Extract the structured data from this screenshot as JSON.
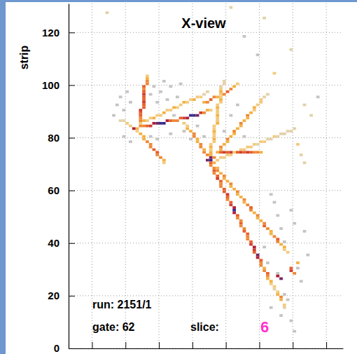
{
  "chart_data": {
    "type": "heatmap",
    "title": "X-view",
    "ylabel": "strip",
    "xlim": [
      0,
      82
    ],
    "xticks": [
      7,
      17,
      27,
      37,
      47,
      57,
      67,
      77
    ],
    "ylim": [
      0,
      131
    ],
    "yticks": [
      0,
      20,
      40,
      60,
      80,
      100,
      120
    ],
    "zlim": [
      0,
      10
    ],
    "grid": true,
    "tick_labels": "y",
    "annotations": [
      {
        "text": "run: 2151/1"
      },
      {
        "text": "gate: 62"
      },
      {
        "text": "slice:"
      },
      {
        "text": "6",
        "color": "#ff33cc"
      }
    ],
    "cells": [
      [
        14,
        92,
        1
      ],
      [
        15,
        95,
        1
      ],
      [
        16,
        90,
        1
      ],
      [
        17,
        97,
        1
      ],
      [
        18,
        93,
        1
      ],
      [
        24,
        96,
        1
      ],
      [
        25,
        99,
        1
      ],
      [
        26,
        93,
        1
      ],
      [
        27,
        97,
        1
      ],
      [
        28,
        101,
        1
      ],
      [
        29,
        94,
        1
      ],
      [
        30,
        99,
        1
      ],
      [
        31,
        88,
        1
      ],
      [
        32,
        95,
        1
      ],
      [
        33,
        100,
        1
      ],
      [
        16,
        80,
        1
      ],
      [
        18,
        78,
        1
      ],
      [
        24,
        80,
        1
      ],
      [
        26,
        79,
        1
      ],
      [
        30,
        81,
        1
      ],
      [
        13,
        88,
        1
      ],
      [
        34,
        82,
        1
      ],
      [
        36,
        79,
        1
      ],
      [
        38,
        84,
        1
      ],
      [
        40,
        80,
        1
      ],
      [
        44,
        86,
        1
      ],
      [
        46,
        82,
        1
      ],
      [
        48,
        88,
        1
      ],
      [
        50,
        92,
        1
      ],
      [
        52,
        80,
        1
      ],
      [
        60,
        58,
        1
      ],
      [
        61,
        55,
        1
      ],
      [
        62,
        50,
        1
      ],
      [
        63,
        45,
        1
      ],
      [
        64,
        40,
        1
      ],
      [
        66,
        52,
        1
      ],
      [
        67,
        47,
        1
      ],
      [
        68,
        30,
        1
      ],
      [
        69,
        25,
        1
      ],
      [
        65,
        18,
        1
      ],
      [
        66,
        10,
        1
      ],
      [
        67,
        6,
        1
      ],
      [
        63,
        12,
        1
      ],
      [
        70,
        44,
        1
      ],
      [
        71,
        35,
        1
      ],
      [
        58,
        38,
        1
      ],
      [
        59,
        32,
        1
      ],
      [
        62,
        28,
        1
      ],
      [
        64,
        20,
        1
      ],
      [
        60,
        15,
        1
      ],
      [
        11,
        127,
        2
      ],
      [
        48,
        129,
        2
      ],
      [
        58,
        125,
        2
      ],
      [
        61,
        104,
        3
      ],
      [
        66,
        113,
        2
      ],
      [
        56,
        111,
        1
      ],
      [
        52,
        118,
        1
      ],
      [
        70,
        92,
        2
      ],
      [
        72,
        88,
        2
      ],
      [
        74,
        95,
        1
      ],
      [
        20,
        83,
        4
      ],
      [
        21,
        84,
        5
      ],
      [
        22,
        84,
        5
      ],
      [
        23,
        84,
        6
      ],
      [
        24,
        84,
        7
      ],
      [
        25,
        85,
        8
      ],
      [
        26,
        85,
        9
      ],
      [
        27,
        85,
        10
      ],
      [
        28,
        85,
        10
      ],
      [
        29,
        86,
        8
      ],
      [
        30,
        86,
        6
      ],
      [
        31,
        86,
        5
      ],
      [
        32,
        86,
        5
      ],
      [
        33,
        87,
        6
      ],
      [
        34,
        87,
        7
      ],
      [
        35,
        87,
        8
      ],
      [
        36,
        88,
        10
      ],
      [
        37,
        88,
        10
      ],
      [
        38,
        88,
        9
      ],
      [
        39,
        89,
        7
      ],
      [
        40,
        89,
        5
      ],
      [
        41,
        90,
        4
      ],
      [
        42,
        90,
        3
      ],
      [
        21,
        85,
        3
      ],
      [
        22,
        86,
        4
      ],
      [
        23,
        86,
        3
      ],
      [
        24,
        87,
        3
      ],
      [
        25,
        87,
        4
      ],
      [
        26,
        88,
        3
      ],
      [
        27,
        88,
        3
      ],
      [
        28,
        89,
        4
      ],
      [
        29,
        90,
        3
      ],
      [
        30,
        90,
        3
      ],
      [
        31,
        91,
        4
      ],
      [
        32,
        91,
        3
      ],
      [
        33,
        92,
        3
      ],
      [
        34,
        93,
        4
      ],
      [
        35,
        93,
        3
      ],
      [
        36,
        94,
        3
      ],
      [
        37,
        94,
        4
      ],
      [
        38,
        95,
        3
      ],
      [
        39,
        95,
        3
      ],
      [
        40,
        96,
        2
      ],
      [
        41,
        97,
        2
      ],
      [
        21,
        86,
        5
      ],
      [
        21,
        87,
        5
      ],
      [
        21,
        88,
        6
      ],
      [
        21,
        89,
        6
      ],
      [
        21,
        90,
        7
      ],
      [
        22,
        91,
        6
      ],
      [
        22,
        92,
        6
      ],
      [
        22,
        93,
        7
      ],
      [
        22,
        94,
        6
      ],
      [
        22,
        95,
        6
      ],
      [
        22,
        96,
        7
      ],
      [
        22,
        97,
        6
      ],
      [
        22,
        98,
        5
      ],
      [
        22,
        99,
        6
      ],
      [
        23,
        100,
        5
      ],
      [
        23,
        101,
        5
      ],
      [
        23,
        102,
        4
      ],
      [
        23,
        103,
        3
      ],
      [
        20,
        82,
        3
      ],
      [
        21,
        81,
        4
      ],
      [
        22,
        80,
        4
      ],
      [
        22,
        79,
        4
      ],
      [
        23,
        78,
        5
      ],
      [
        24,
        77,
        5
      ],
      [
        24,
        76,
        5
      ],
      [
        25,
        75,
        6
      ],
      [
        26,
        74,
        6
      ],
      [
        26,
        73,
        5
      ],
      [
        27,
        72,
        5
      ],
      [
        28,
        71,
        4
      ],
      [
        28,
        70,
        3
      ],
      [
        19,
        83,
        8
      ],
      [
        18,
        84,
        3
      ],
      [
        17,
        85,
        3
      ],
      [
        16,
        86,
        2
      ],
      [
        15,
        86,
        2
      ],
      [
        42,
        71,
        10
      ],
      [
        41,
        71,
        9
      ],
      [
        42,
        72,
        9
      ],
      [
        42,
        70,
        6
      ],
      [
        42,
        69,
        5
      ],
      [
        43,
        68,
        5
      ],
      [
        43,
        67,
        6
      ],
      [
        43,
        66,
        5
      ],
      [
        44,
        65,
        6
      ],
      [
        44,
        64,
        7
      ],
      [
        45,
        63,
        6
      ],
      [
        45,
        62,
        5
      ],
      [
        45,
        61,
        5
      ],
      [
        46,
        60,
        6
      ],
      [
        46,
        59,
        6
      ],
      [
        47,
        58,
        7
      ],
      [
        47,
        57,
        6
      ],
      [
        47,
        56,
        5
      ],
      [
        48,
        55,
        6
      ],
      [
        48,
        54,
        7
      ],
      [
        49,
        53,
        8
      ],
      [
        49,
        52,
        10
      ],
      [
        49,
        51,
        8
      ],
      [
        50,
        50,
        6
      ],
      [
        50,
        49,
        5
      ],
      [
        51,
        48,
        5
      ],
      [
        51,
        47,
        6
      ],
      [
        51,
        46,
        5
      ],
      [
        52,
        45,
        5
      ],
      [
        52,
        44,
        6
      ],
      [
        53,
        43,
        6
      ],
      [
        53,
        42,
        5
      ],
      [
        53,
        41,
        5
      ],
      [
        54,
        40,
        6
      ],
      [
        54,
        39,
        7
      ],
      [
        55,
        38,
        8
      ],
      [
        55,
        37,
        7
      ],
      [
        55,
        36,
        6
      ],
      [
        56,
        35,
        9
      ],
      [
        56,
        34,
        8
      ],
      [
        57,
        33,
        6
      ],
      [
        57,
        32,
        5
      ],
      [
        57,
        31,
        5
      ],
      [
        58,
        30,
        4
      ],
      [
        58,
        29,
        5
      ],
      [
        59,
        28,
        6
      ],
      [
        59,
        27,
        5
      ],
      [
        59,
        26,
        4
      ],
      [
        60,
        25,
        4
      ],
      [
        60,
        24,
        3
      ],
      [
        61,
        23,
        3
      ],
      [
        61,
        22,
        2
      ],
      [
        43,
        70,
        4
      ],
      [
        44,
        68,
        4
      ],
      [
        44,
        67,
        5
      ],
      [
        45,
        66,
        4
      ],
      [
        46,
        65,
        5
      ],
      [
        46,
        64,
        4
      ],
      [
        47,
        63,
        4
      ],
      [
        48,
        62,
        5
      ],
      [
        48,
        61,
        4
      ],
      [
        49,
        60,
        4
      ],
      [
        50,
        59,
        5
      ],
      [
        50,
        58,
        4
      ],
      [
        51,
        57,
        4
      ],
      [
        52,
        56,
        5
      ],
      [
        52,
        55,
        4
      ],
      [
        53,
        54,
        5
      ],
      [
        54,
        53,
        6
      ],
      [
        54,
        52,
        5
      ],
      [
        55,
        51,
        4
      ],
      [
        56,
        50,
        5
      ],
      [
        56,
        49,
        4
      ],
      [
        57,
        48,
        4
      ],
      [
        58,
        47,
        5
      ],
      [
        58,
        46,
        6
      ],
      [
        59,
        45,
        5
      ],
      [
        60,
        44,
        4
      ],
      [
        60,
        43,
        4
      ],
      [
        61,
        42,
        5
      ],
      [
        62,
        41,
        6
      ],
      [
        62,
        40,
        5
      ],
      [
        63,
        39,
        4
      ],
      [
        64,
        38,
        4
      ],
      [
        64,
        37,
        3
      ],
      [
        65,
        36,
        3
      ],
      [
        42,
        73,
        4
      ],
      [
        42,
        74,
        4
      ],
      [
        42,
        75,
        3
      ],
      [
        42,
        76,
        4
      ],
      [
        42,
        77,
        3
      ],
      [
        43,
        78,
        3
      ],
      [
        43,
        79,
        4
      ],
      [
        43,
        80,
        3
      ],
      [
        43,
        81,
        3
      ],
      [
        43,
        82,
        4
      ],
      [
        43,
        83,
        3
      ],
      [
        43,
        84,
        3
      ],
      [
        44,
        85,
        4
      ],
      [
        44,
        86,
        3
      ],
      [
        44,
        87,
        3
      ],
      [
        44,
        88,
        4
      ],
      [
        44,
        89,
        3
      ],
      [
        44,
        90,
        3
      ],
      [
        44,
        91,
        4
      ],
      [
        44,
        92,
        3
      ],
      [
        45,
        93,
        3
      ],
      [
        45,
        94,
        4
      ],
      [
        45,
        95,
        3
      ],
      [
        45,
        96,
        3
      ],
      [
        45,
        97,
        4
      ],
      [
        45,
        98,
        3
      ],
      [
        45,
        99,
        2
      ],
      [
        46,
        100,
        2
      ],
      [
        46,
        101,
        2
      ],
      [
        43,
        72,
        5
      ],
      [
        44,
        74,
        4
      ],
      [
        45,
        75,
        4
      ],
      [
        45,
        76,
        5
      ],
      [
        46,
        77,
        4
      ],
      [
        47,
        78,
        4
      ],
      [
        47,
        79,
        5
      ],
      [
        48,
        80,
        4
      ],
      [
        49,
        81,
        4
      ],
      [
        49,
        82,
        5
      ],
      [
        50,
        83,
        4
      ],
      [
        51,
        84,
        4
      ],
      [
        51,
        85,
        5
      ],
      [
        52,
        86,
        4
      ],
      [
        53,
        87,
        4
      ],
      [
        53,
        88,
        5
      ],
      [
        54,
        89,
        4
      ],
      [
        55,
        90,
        3
      ],
      [
        55,
        91,
        4
      ],
      [
        56,
        92,
        3
      ],
      [
        57,
        93,
        3
      ],
      [
        57,
        94,
        3
      ],
      [
        58,
        95,
        2
      ],
      [
        59,
        96,
        2
      ],
      [
        44,
        71,
        3
      ],
      [
        45,
        72,
        3
      ],
      [
        46,
        72,
        3
      ],
      [
        47,
        73,
        3
      ],
      [
        48,
        73,
        3
      ],
      [
        49,
        74,
        3
      ],
      [
        50,
        74,
        3
      ],
      [
        51,
        75,
        3
      ],
      [
        52,
        75,
        3
      ],
      [
        53,
        76,
        3
      ],
      [
        54,
        76,
        3
      ],
      [
        55,
        77,
        3
      ],
      [
        56,
        77,
        2
      ],
      [
        57,
        78,
        3
      ],
      [
        58,
        78,
        3
      ],
      [
        59,
        79,
        2
      ],
      [
        60,
        79,
        2
      ],
      [
        61,
        80,
        3
      ],
      [
        62,
        80,
        2
      ],
      [
        63,
        81,
        2
      ],
      [
        64,
        81,
        2
      ],
      [
        65,
        82,
        2
      ],
      [
        66,
        82,
        2
      ],
      [
        67,
        83,
        2
      ],
      [
        45,
        74,
        6
      ],
      [
        46,
        74,
        7
      ],
      [
        47,
        74,
        6
      ],
      [
        48,
        74,
        7
      ],
      [
        50,
        74,
        6
      ],
      [
        51,
        74,
        7
      ],
      [
        52,
        74,
        6
      ],
      [
        53,
        74,
        7
      ],
      [
        54,
        74,
        6
      ],
      [
        55,
        74,
        5
      ],
      [
        56,
        74,
        5
      ],
      [
        57,
        74,
        4
      ],
      [
        41,
        73,
        5
      ],
      [
        40,
        74,
        5
      ],
      [
        40,
        75,
        4
      ],
      [
        39,
        76,
        5
      ],
      [
        39,
        77,
        5
      ],
      [
        38,
        78,
        4
      ],
      [
        38,
        79,
        4
      ],
      [
        37,
        80,
        5
      ],
      [
        37,
        81,
        5
      ],
      [
        36,
        82,
        4
      ],
      [
        35,
        83,
        4
      ],
      [
        35,
        84,
        3
      ],
      [
        34,
        85,
        3
      ],
      [
        40,
        93,
        4
      ],
      [
        41,
        93,
        5
      ],
      [
        42,
        94,
        6
      ],
      [
        43,
        95,
        5
      ],
      [
        44,
        95,
        4
      ],
      [
        46,
        96,
        5
      ],
      [
        47,
        97,
        6
      ],
      [
        48,
        98,
        5
      ],
      [
        49,
        99,
        4
      ],
      [
        50,
        100,
        3
      ],
      [
        62,
        21,
        3
      ],
      [
        62,
        20,
        4
      ],
      [
        63,
        19,
        5
      ],
      [
        63,
        18,
        4
      ],
      [
        64,
        16,
        3
      ],
      [
        64,
        15,
        2
      ],
      [
        66,
        30,
        6
      ],
      [
        66,
        29,
        7
      ],
      [
        67,
        28,
        5
      ],
      [
        68,
        32,
        4
      ],
      [
        63,
        26,
        9
      ],
      [
        62,
        27,
        8
      ],
      [
        68,
        77,
        3
      ],
      [
        69,
        73,
        2
      ],
      [
        70,
        70,
        2
      ]
    ]
  }
}
